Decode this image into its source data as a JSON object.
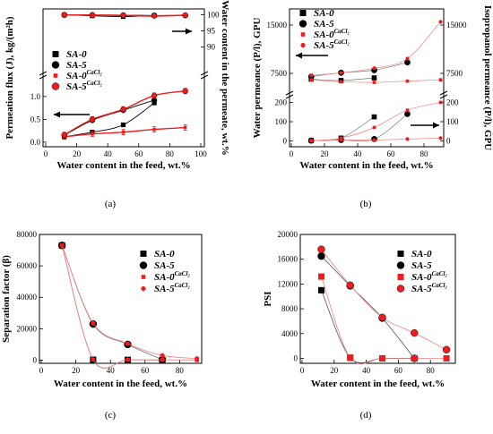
{
  "figure": {
    "panels": [
      {
        "id": "a",
        "label": "(a)",
        "xlabel": "Water content in the feed, wt.%",
        "ylabel_left": "Permeation flux (J), kg/(m²h)",
        "ylabel_right": "Water content in the permeate, wt.%",
        "xticks": [
          "0",
          "20",
          "40",
          "60",
          "80",
          "100"
        ],
        "yticks_left": [
          "0.0",
          "0.5",
          "1.0"
        ],
        "yticks_right": [
          "90",
          "95",
          "100"
        ],
        "legend": [
          {
            "name": "SA-0",
            "sup": "",
            "marker": "square",
            "color": "#000000"
          },
          {
            "name": "SA-5",
            "sup": "",
            "marker": "circle",
            "color": "#000000"
          },
          {
            "name": "SA-0",
            "sup": "CaCl₂",
            "marker": "small-square",
            "color": "#ee1c1c"
          },
          {
            "name": "SA-5",
            "sup": "CaCl₂",
            "marker": "circle",
            "color": "#ee1c1c"
          }
        ]
      },
      {
        "id": "b",
        "label": "(b)",
        "xlabel": "Water content in the feed, wt.%",
        "ylabel_left": "Water permeance (P/l), GPU",
        "ylabel_right": "Isopropanol permeance (P/l), GPU",
        "xticks": [
          "0",
          "20",
          "40",
          "60",
          "80"
        ],
        "yticks_left_low": [
          "0",
          "100",
          "200"
        ],
        "yticks_left_high": [
          "7500",
          "15000"
        ],
        "yticks_right_low": [
          "0",
          "100",
          "200"
        ],
        "yticks_right_high": [
          "7500",
          "15000"
        ],
        "legend": [
          {
            "name": "SA-0",
            "sup": "",
            "marker": "square",
            "color": "#000000"
          },
          {
            "name": "SA-5",
            "sup": "",
            "marker": "circle",
            "color": "#000000"
          },
          {
            "name": "SA-0",
            "sup": "CaCl₂",
            "marker": "small-square",
            "color": "#ee1c1c"
          },
          {
            "name": "SA-5",
            "sup": "CaCl₂",
            "marker": "small-circle",
            "color": "#ee1c1c"
          }
        ]
      },
      {
        "id": "c",
        "label": "(c)",
        "xlabel": "Water content in the feed, wt.%",
        "ylabel": "Separation factor (β)",
        "xticks": [
          "0",
          "20",
          "40",
          "60",
          "80"
        ],
        "yticks": [
          "0",
          "20000",
          "40000",
          "60000",
          "80000"
        ],
        "legend": [
          {
            "name": "SA-0",
            "sup": "",
            "marker": "square",
            "color": "#000000"
          },
          {
            "name": "SA-5",
            "sup": "",
            "marker": "circle",
            "color": "#000000"
          },
          {
            "name": "SA-0",
            "sup": "CaCl₂",
            "marker": "small-square",
            "color": "#ee1c1c"
          },
          {
            "name": "SA-5",
            "sup": "CaCl₂",
            "marker": "small-circle",
            "color": "#ee1c1c"
          }
        ]
      },
      {
        "id": "d",
        "label": "(d)",
        "xlabel": "Water content in the feed, wt.%",
        "ylabel": "PSI",
        "xticks": [
          "0",
          "20",
          "40",
          "60",
          "80"
        ],
        "yticks": [
          "0",
          "4000",
          "8000",
          "12000",
          "16000",
          "20000"
        ],
        "legend": [
          {
            "name": "SA-0",
            "sup": "",
            "marker": "square",
            "color": "#000000"
          },
          {
            "name": "SA-5",
            "sup": "",
            "marker": "circle",
            "color": "#000000"
          },
          {
            "name": "SA-0",
            "sup": "CaCl₂",
            "marker": "square",
            "color": "#ee1c1c"
          },
          {
            "name": "SA-5",
            "sup": "CaCl₂",
            "marker": "circle",
            "color": "#ee1c1c"
          }
        ]
      }
    ]
  },
  "chart_data": [
    {
      "type": "line",
      "panel": "a",
      "series": [
        {
          "name": "SA-0 flux",
          "axis": "left",
          "x": [
            12,
            30,
            50,
            70
          ],
          "y": [
            0.12,
            0.22,
            0.38,
            0.86
          ]
        },
        {
          "name": "SA-5 flux",
          "axis": "left",
          "x": [
            12,
            30,
            50,
            70
          ],
          "y": [
            0.15,
            0.48,
            0.7,
            0.92
          ]
        },
        {
          "name": "SA-0 CaCl2 flux",
          "axis": "left",
          "x": [
            12,
            30,
            50,
            70,
            90
          ],
          "y": [
            0.12,
            0.18,
            0.22,
            0.28,
            0.32
          ]
        },
        {
          "name": "SA-5 CaCl2 flux",
          "axis": "left",
          "x": [
            12,
            30,
            50,
            70,
            90
          ],
          "y": [
            0.16,
            0.5,
            0.72,
            1.02,
            1.12
          ]
        },
        {
          "name": "SA-0 permeate",
          "axis": "right",
          "x": [
            12,
            30,
            50,
            70
          ],
          "y": [
            99.98,
            99.7,
            99.45,
            99.8
          ]
        },
        {
          "name": "SA-5 permeate",
          "axis": "right",
          "x": [
            12,
            30,
            50,
            70,
            90
          ],
          "y": [
            99.98,
            99.95,
            99.9,
            99.8,
            99.8
          ]
        },
        {
          "name": "SA-0 CaCl2 permeate",
          "axis": "right",
          "x": [
            12,
            30,
            50,
            70,
            90
          ],
          "y": [
            99.98,
            99.95,
            99.8,
            99.6,
            99.9
          ]
        },
        {
          "name": "SA-5 CaCl2 permeate",
          "axis": "right",
          "x": [
            12,
            30,
            50,
            70,
            90
          ],
          "y": [
            99.98,
            99.9,
            99.85,
            99.7,
            99.9
          ]
        }
      ],
      "xlim": [
        0,
        100
      ],
      "ylim_left": [
        -0.1,
        1.4
      ],
      "ylim_right": [
        89,
        101
      ]
    },
    {
      "type": "line",
      "panel": "b",
      "series": [
        {
          "name": "SA-0 water",
          "x": [
            12,
            30,
            50
          ],
          "y": [
            6600,
            6400,
            6800
          ]
        },
        {
          "name": "SA-5 water",
          "x": [
            12,
            30,
            50,
            70
          ],
          "y": [
            7000,
            7600,
            8000,
            9200
          ]
        },
        {
          "name": "SA-0 CaCl2 water",
          "x": [
            12,
            30,
            50,
            70,
            90
          ],
          "y": [
            6500,
            6200,
            6100,
            6300,
            6500
          ]
        },
        {
          "name": "SA-5 CaCl2 water",
          "x": [
            12,
            30,
            50,
            70,
            90
          ],
          "y": [
            7200,
            7600,
            8300,
            9800,
            15500
          ]
        },
        {
          "name": "SA-0 isopropanol",
          "x": [
            12,
            30,
            50
          ],
          "y": [
            2,
            15,
            125
          ]
        },
        {
          "name": "SA-5 isopropanol",
          "x": [
            12,
            30,
            50,
            70
          ],
          "y": [
            2,
            5,
            10,
            140
          ]
        },
        {
          "name": "SA-0 CaCl2 isopropanol",
          "x": [
            12,
            30,
            50,
            70,
            90
          ],
          "y": [
            2,
            15,
            70,
            160,
            200
          ]
        },
        {
          "name": "SA-5 CaCl2 isopropanol",
          "x": [
            12,
            30,
            50,
            70,
            90
          ],
          "y": [
            2,
            5,
            5,
            10,
            15
          ]
        }
      ],
      "xlim": [
        0,
        100
      ]
    },
    {
      "type": "line",
      "panel": "c",
      "series": [
        {
          "name": "SA-0",
          "x": [
            12,
            30,
            50,
            70
          ],
          "y": [
            73000,
            300,
            200,
            0
          ]
        },
        {
          "name": "SA-5",
          "x": [
            12,
            30,
            50,
            70
          ],
          "y": [
            73000,
            23000,
            10000,
            300
          ]
        },
        {
          "name": "SA-0 CaCl2",
          "x": [
            12,
            30,
            50,
            70,
            90
          ],
          "y": [
            73000,
            400,
            300,
            200,
            100
          ]
        },
        {
          "name": "SA-5 CaCl2",
          "x": [
            12,
            30,
            50,
            70,
            90
          ],
          "y": [
            73000,
            23500,
            10500,
            3000,
            1000
          ]
        }
      ],
      "xlim": [
        0,
        100
      ],
      "ylim": [
        -2000,
        80000
      ]
    },
    {
      "type": "line",
      "panel": "d",
      "series": [
        {
          "name": "SA-0",
          "x": [
            12,
            30,
            50,
            70
          ],
          "y": [
            11000,
            100,
            0,
            0
          ]
        },
        {
          "name": "SA-5",
          "x": [
            12,
            30,
            50,
            70
          ],
          "y": [
            16500,
            11700,
            6500,
            0
          ]
        },
        {
          "name": "SA-0 CaCl2",
          "x": [
            12,
            30,
            50,
            70,
            90
          ],
          "y": [
            13200,
            100,
            0,
            0,
            0
          ]
        },
        {
          "name": "SA-5 CaCl2",
          "x": [
            12,
            30,
            50,
            70,
            90
          ],
          "y": [
            17600,
            11800,
            6600,
            4100,
            1400
          ]
        }
      ],
      "xlim": [
        0,
        100
      ],
      "ylim": [
        -800,
        20000
      ]
    }
  ]
}
